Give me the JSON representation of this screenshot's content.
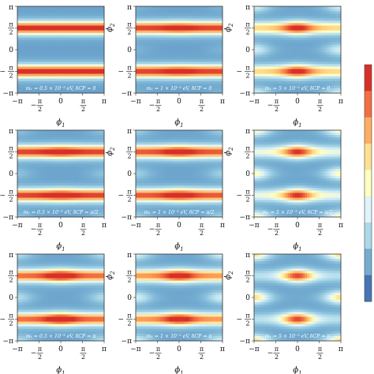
{
  "figure": {
    "xlabel": "ϕ",
    "ylabel": "ϕ",
    "xlabel_sub": "1",
    "ylabel_sub": "2",
    "tick_labels": {
      "pi": "π",
      "minus_pi": "−π",
      "half_num": "π",
      "half_den": "2",
      "zero": "0",
      "minus_sign": "−"
    }
  },
  "colorbar": {
    "colors": [
      "#d73027",
      "#f46d43",
      "#fdae61",
      "#fee090",
      "#ffffbf",
      "#e0f3f8",
      "#abd9e9",
      "#74add1",
      "#4575b4"
    ]
  },
  "chart_data": [
    {
      "type": "heatmap",
      "row": 0,
      "col": 0,
      "x_range": [
        -3.1416,
        3.1416
      ],
      "y_range": [
        -3.1416,
        3.1416
      ],
      "annotation": "m₁ = 0.5 × 10⁻³ eV, δCP = 0",
      "pattern": {
        "A": 0.95,
        "B": 0.0,
        "C": 0.0
      }
    },
    {
      "type": "heatmap",
      "row": 0,
      "col": 1,
      "x_range": [
        -3.1416,
        3.1416
      ],
      "y_range": [
        -3.1416,
        3.1416
      ],
      "annotation": "m₁ = 1 × 10⁻³ eV, δCP = 0",
      "pattern": {
        "A": 0.9,
        "B": 0.1,
        "C": 0.05
      }
    },
    {
      "type": "heatmap",
      "row": 0,
      "col": 2,
      "x_range": [
        -3.1416,
        3.1416
      ],
      "y_range": [
        -3.1416,
        3.1416
      ],
      "annotation": "m₁ = 5 × 10⁻³ eV, δCP = 0",
      "pattern": {
        "A": 0.55,
        "B": 0.45,
        "C": 0.3
      }
    },
    {
      "type": "heatmap",
      "row": 1,
      "col": 0,
      "x_range": [
        -3.1416,
        3.1416
      ],
      "y_range": [
        -3.1416,
        3.1416
      ],
      "annotation": "m₁ = 0.5 × 10⁻³ eV, δCP = π/2",
      "pattern": {
        "A": 0.9,
        "B": 0.15,
        "C": 0.1
      }
    },
    {
      "type": "heatmap",
      "row": 1,
      "col": 1,
      "x_range": [
        -3.1416,
        3.1416
      ],
      "y_range": [
        -3.1416,
        3.1416
      ],
      "annotation": "m₁ = 1 × 10⁻³ eV, δCP = π/2",
      "pattern": {
        "A": 0.85,
        "B": 0.2,
        "C": 0.15
      }
    },
    {
      "type": "heatmap",
      "row": 1,
      "col": 2,
      "x_range": [
        -3.1416,
        3.1416
      ],
      "y_range": [
        -3.1416,
        3.1416
      ],
      "annotation": "m₁ = 5 × 10⁻³ eV, δCP = π/2",
      "pattern": {
        "A": 0.35,
        "B": 0.6,
        "C": 0.45
      }
    },
    {
      "type": "heatmap",
      "row": 2,
      "col": 0,
      "x_range": [
        -3.1416,
        3.1416
      ],
      "y_range": [
        -3.1416,
        3.1416
      ],
      "annotation": "m₁ = 0.5 × 10⁻³ eV, δCP = π",
      "pattern": {
        "A": 0.8,
        "B": 0.3,
        "C": 0.2
      }
    },
    {
      "type": "heatmap",
      "row": 2,
      "col": 1,
      "x_range": [
        -3.1416,
        3.1416
      ],
      "y_range": [
        -3.1416,
        3.1416
      ],
      "annotation": "m₁ = 1 × 10⁻³ eV, δCP = π",
      "pattern": {
        "A": 0.7,
        "B": 0.35,
        "C": 0.3
      }
    },
    {
      "type": "heatmap",
      "row": 2,
      "col": 2,
      "x_range": [
        -3.1416,
        3.1416
      ],
      "y_range": [
        -3.1416,
        3.1416
      ],
      "annotation": "m₁ = 5 × 10⁻³ eV, δCP = π",
      "pattern": {
        "A": 0.2,
        "B": 0.7,
        "C": 0.55
      }
    }
  ]
}
